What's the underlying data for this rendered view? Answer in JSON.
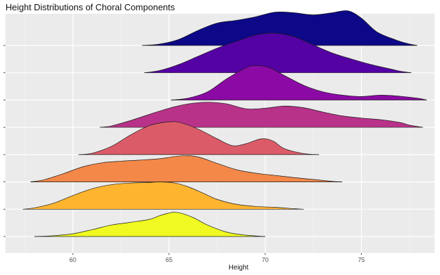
{
  "chart_data": {
    "type": "ridgeline",
    "title": "Height Distributions of Choral Components",
    "xlabel": "Height",
    "ylabel": "",
    "xlim": [
      56.5,
      78.8
    ],
    "x_ticks": [
      60,
      65,
      70,
      75
    ],
    "grid": true,
    "legend": "none",
    "background": "#ebebeb",
    "series": [
      {
        "name": "",
        "color": "#f0f921",
        "density": [
          [
            58,
            0
          ],
          [
            59,
            0.03
          ],
          [
            60,
            0.1
          ],
          [
            61,
            0.25
          ],
          [
            62,
            0.42
          ],
          [
            63,
            0.52
          ],
          [
            64,
            0.63
          ],
          [
            64.5,
            0.76
          ],
          [
            65,
            0.86
          ],
          [
            65.3,
            0.89
          ],
          [
            65.7,
            0.84
          ],
          [
            66.3,
            0.68
          ],
          [
            67,
            0.42
          ],
          [
            68,
            0.16
          ],
          [
            69,
            0.05
          ],
          [
            70,
            0
          ]
        ]
      },
      {
        "name": "",
        "color": "#fdb42f",
        "density": [
          [
            57.4,
            0
          ],
          [
            58,
            0.05
          ],
          [
            59,
            0.22
          ],
          [
            60,
            0.5
          ],
          [
            61,
            0.75
          ],
          [
            62,
            0.9
          ],
          [
            63,
            0.96
          ],
          [
            64,
            0.98
          ],
          [
            64.6,
            1.0
          ],
          [
            65.3,
            0.96
          ],
          [
            66,
            0.82
          ],
          [
            66.8,
            0.58
          ],
          [
            67.5,
            0.36
          ],
          [
            68.5,
            0.18
          ],
          [
            69.5,
            0.1
          ],
          [
            70.5,
            0.07
          ],
          [
            71.5,
            0.02
          ],
          [
            72,
            0
          ]
        ]
      },
      {
        "name": "",
        "color": "#f48849",
        "density": [
          [
            57.8,
            0
          ],
          [
            58.5,
            0.08
          ],
          [
            59.5,
            0.3
          ],
          [
            60.5,
            0.55
          ],
          [
            61.5,
            0.7
          ],
          [
            62.5,
            0.76
          ],
          [
            63.5,
            0.8
          ],
          [
            64.5,
            0.85
          ],
          [
            65.3,
            0.93
          ],
          [
            66,
            0.96
          ],
          [
            66.6,
            0.9
          ],
          [
            67.5,
            0.68
          ],
          [
            68.5,
            0.45
          ],
          [
            69.5,
            0.32
          ],
          [
            70.5,
            0.24
          ],
          [
            71.5,
            0.16
          ],
          [
            72.5,
            0.09
          ],
          [
            73.5,
            0.02
          ],
          [
            74,
            0
          ]
        ]
      },
      {
        "name": "",
        "color": "#db5c68",
        "density": [
          [
            60.3,
            0
          ],
          [
            61,
            0.05
          ],
          [
            62,
            0.3
          ],
          [
            63,
            0.72
          ],
          [
            64,
            1.07
          ],
          [
            65,
            1.2
          ],
          [
            65.6,
            1.17
          ],
          [
            66.5,
            0.94
          ],
          [
            67.5,
            0.58
          ],
          [
            68.3,
            0.33
          ],
          [
            69,
            0.4
          ],
          [
            69.8,
            0.58
          ],
          [
            70.4,
            0.5
          ],
          [
            71,
            0.22
          ],
          [
            72,
            0.04
          ],
          [
            72.8,
            0
          ]
        ]
      },
      {
        "name": "",
        "color": "#b83289",
        "density": [
          [
            61.4,
            0
          ],
          [
            62,
            0.05
          ],
          [
            63,
            0.25
          ],
          [
            64,
            0.48
          ],
          [
            65,
            0.7
          ],
          [
            66,
            0.86
          ],
          [
            67,
            0.92
          ],
          [
            68,
            0.86
          ],
          [
            69,
            0.68
          ],
          [
            70,
            0.7
          ],
          [
            71,
            0.78
          ],
          [
            72,
            0.72
          ],
          [
            73,
            0.56
          ],
          [
            74,
            0.42
          ],
          [
            75,
            0.34
          ],
          [
            76,
            0.28
          ],
          [
            77,
            0.18
          ],
          [
            77.5,
            0.08
          ],
          [
            78.2,
            0
          ]
        ]
      },
      {
        "name": "",
        "color": "#8b0aa5",
        "density": [
          [
            65.1,
            0
          ],
          [
            66,
            0.07
          ],
          [
            67,
            0.3
          ],
          [
            68,
            0.78
          ],
          [
            69,
            1.18
          ],
          [
            69.5,
            1.26
          ],
          [
            70.2,
            1.19
          ],
          [
            71,
            0.9
          ],
          [
            72,
            0.54
          ],
          [
            73,
            0.3
          ],
          [
            74,
            0.18
          ],
          [
            75,
            0.13
          ],
          [
            76,
            0.18
          ],
          [
            77,
            0.14
          ],
          [
            78,
            0.06
          ],
          [
            78.4,
            0
          ]
        ]
      },
      {
        "name": "",
        "color": "#5402a3",
        "density": [
          [
            63.7,
            0
          ],
          [
            64.5,
            0.08
          ],
          [
            65.5,
            0.3
          ],
          [
            66.5,
            0.6
          ],
          [
            67.5,
            0.9
          ],
          [
            68.5,
            1.15
          ],
          [
            69.5,
            1.38
          ],
          [
            70.5,
            1.45
          ],
          [
            71.5,
            1.32
          ],
          [
            72.5,
            1.02
          ],
          [
            73.5,
            0.72
          ],
          [
            74.5,
            0.5
          ],
          [
            75.5,
            0.3
          ],
          [
            76.5,
            0.14
          ],
          [
            77,
            0.06
          ],
          [
            77.6,
            0
          ]
        ]
      },
      {
        "name": "",
        "color": "#0d0887",
        "density": [
          [
            63.6,
            0
          ],
          [
            64.5,
            0.05
          ],
          [
            65.5,
            0.22
          ],
          [
            66.5,
            0.55
          ],
          [
            67.5,
            0.82
          ],
          [
            68.5,
            0.92
          ],
          [
            69.5,
            1.05
          ],
          [
            70.5,
            1.22
          ],
          [
            71.5,
            1.2
          ],
          [
            72.5,
            1.12
          ],
          [
            73.5,
            1.2
          ],
          [
            74.3,
            1.27
          ],
          [
            75,
            1.0
          ],
          [
            75.8,
            0.5
          ],
          [
            76.8,
            0.2
          ],
          [
            77.4,
            0.07
          ],
          [
            77.9,
            0
          ]
        ]
      }
    ]
  }
}
